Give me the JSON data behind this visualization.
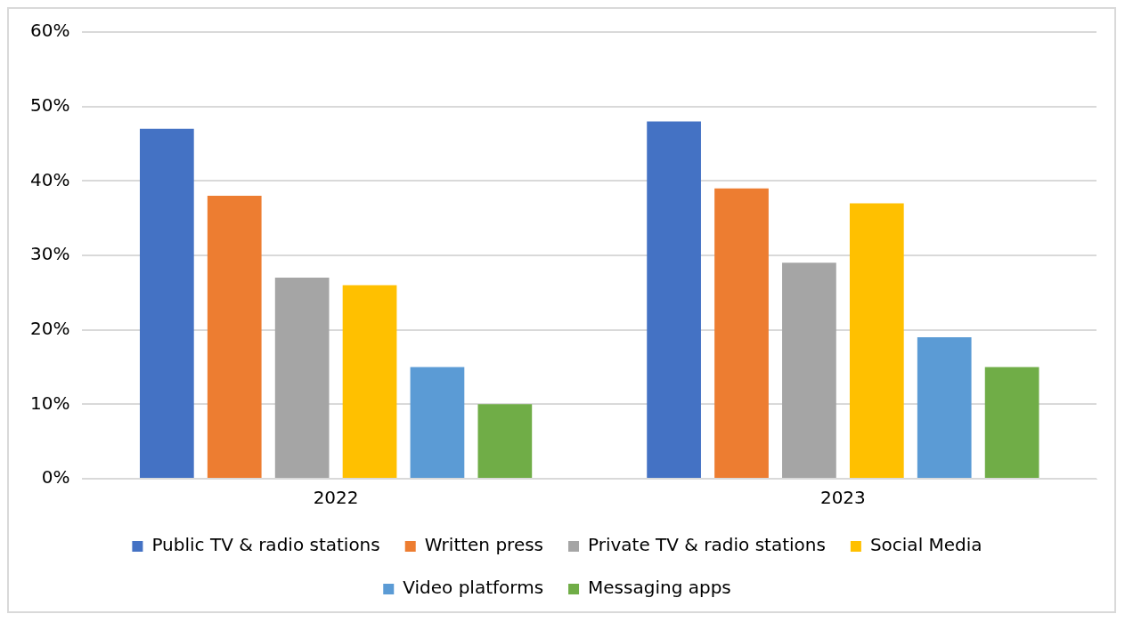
{
  "chart_data": {
    "type": "bar",
    "categories": [
      "2022",
      "2023"
    ],
    "series": [
      {
        "name": "Public TV & radio stations",
        "color": "#4472c4",
        "values": [
          47,
          48
        ]
      },
      {
        "name": "Written press",
        "color": "#ed7d31",
        "values": [
          38,
          39
        ]
      },
      {
        "name": "Private TV & radio stations",
        "color": "#a5a5a5",
        "values": [
          27,
          29
        ]
      },
      {
        "name": "Social Media",
        "color": "#ffc000",
        "values": [
          26,
          37
        ]
      },
      {
        "name": "Video platforms",
        "color": "#5b9bd5",
        "values": [
          15,
          19
        ]
      },
      {
        "name": "Messaging apps",
        "color": "#70ad47",
        "values": [
          10,
          15
        ]
      }
    ],
    "ylim": [
      0,
      60
    ],
    "yticks": [
      {
        "value": 0,
        "label": "0%"
      },
      {
        "value": 10,
        "label": "10%"
      },
      {
        "value": 20,
        "label": "20%"
      },
      {
        "value": 30,
        "label": "30%"
      },
      {
        "value": 40,
        "label": "40%"
      },
      {
        "value": 50,
        "label": "50%"
      },
      {
        "value": 60,
        "label": "60%"
      }
    ],
    "grid": "y",
    "legend": "bottom"
  }
}
